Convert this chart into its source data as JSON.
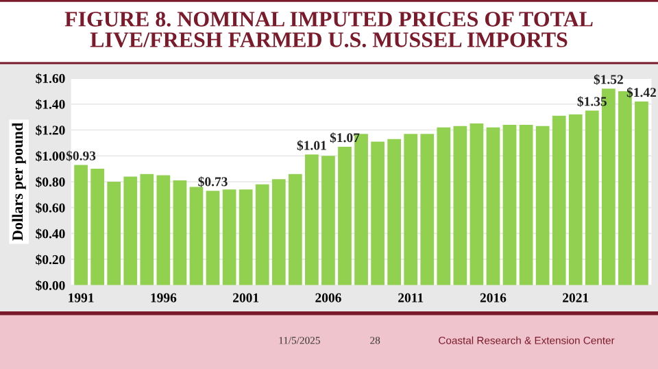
{
  "chart_data": {
    "type": "bar",
    "title": "FIGURE 8. NOMINAL IMPUTED PRICES OF TOTAL\nLIVE/FRESH FARMED U.S. MUSSEL IMPORTS",
    "ylabel": "Dollars per pound",
    "categories": [
      "1991",
      null,
      null,
      null,
      null,
      "1996",
      null,
      null,
      null,
      null,
      "2001",
      null,
      null,
      null,
      null,
      "2006",
      null,
      null,
      null,
      null,
      "2011",
      null,
      null,
      null,
      null,
      "2016",
      null,
      null,
      null,
      null,
      "2021",
      null,
      null,
      null,
      null
    ],
    "values": [
      0.93,
      0.9,
      0.8,
      0.84,
      0.86,
      0.85,
      0.81,
      0.76,
      0.73,
      0.74,
      0.74,
      0.78,
      0.82,
      0.86,
      1.01,
      1.0,
      1.07,
      1.17,
      1.11,
      1.13,
      1.17,
      1.17,
      1.22,
      1.23,
      1.25,
      1.22,
      1.24,
      1.24,
      1.23,
      1.31,
      1.32,
      1.35,
      1.52,
      1.5,
      1.42
    ],
    "value_labels": [
      "$0.93",
      null,
      null,
      null,
      null,
      null,
      null,
      null,
      "$0.73",
      null,
      null,
      null,
      null,
      null,
      "$1.01",
      null,
      "$1.07",
      null,
      null,
      null,
      null,
      null,
      null,
      null,
      null,
      null,
      null,
      null,
      null,
      null,
      null,
      "$1.35",
      "$1.52",
      null,
      "$1.42"
    ],
    "color": "#92d050",
    "ylim": [
      0,
      1.6
    ],
    "yticks": [
      {
        "value": 0,
        "label": "$0.00"
      },
      {
        "value": 0.2,
        "label": "$0.20"
      },
      {
        "value": 0.4,
        "label": "$0.40"
      },
      {
        "value": 0.6,
        "label": "$0.60"
      },
      {
        "value": 0.8,
        "label": "$0.80"
      },
      {
        "value": 1.0,
        "label": "$1.00"
      },
      {
        "value": 1.2,
        "label": "$1.20"
      },
      {
        "value": 1.4,
        "label": "$1.40"
      },
      {
        "value": 1.6,
        "label": "$1.60"
      }
    ],
    "grid": "y",
    "annotations": [
      "11/5/2025",
      "28",
      "Coastal Research & Extension Center"
    ]
  }
}
